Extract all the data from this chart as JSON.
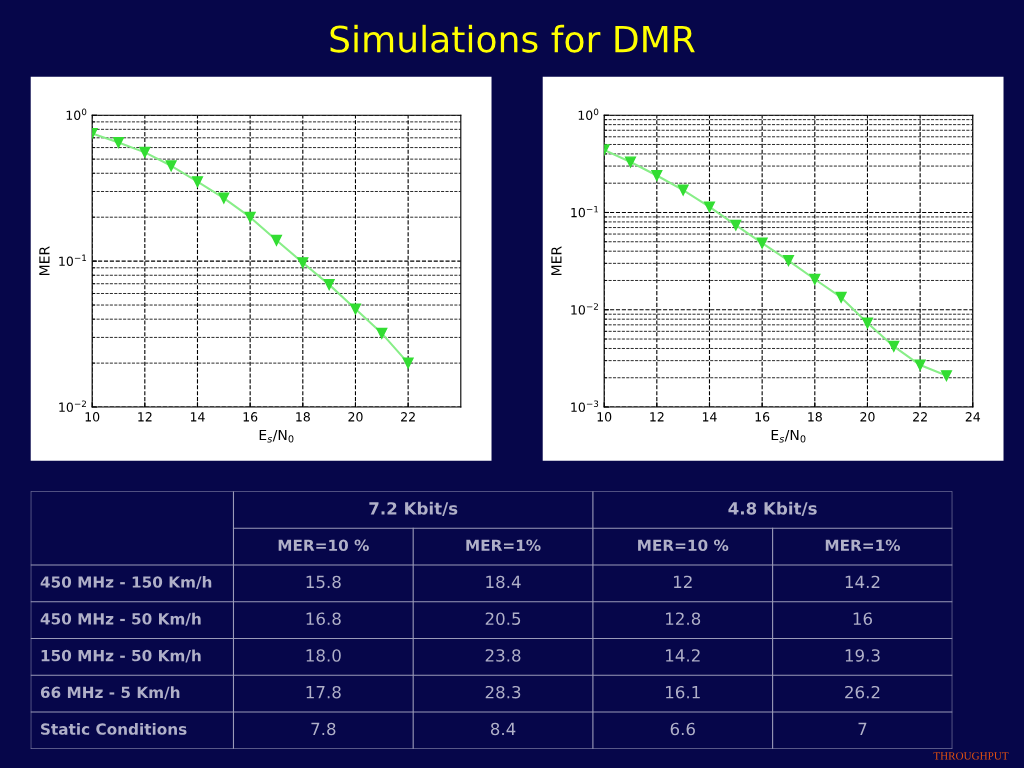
{
  "chart_data": [
    {
      "type": "line",
      "title": "Simulations for DMR",
      "xlabel": "E$_{s}$/N$_{0}$",
      "ylabel": "MER",
      "log": "y",
      "x": [
        10,
        11,
        12,
        13,
        14,
        15,
        16,
        17,
        18,
        19,
        20,
        21,
        22
      ],
      "series": [
        {
          "color": "#33dd33",
          "values": [
            0.75,
            0.65,
            0.556,
            0.45,
            0.35,
            0.27,
            0.2,
            0.139,
            0.0975,
            0.069,
            0.047,
            0.032,
            0.02
          ]
        }
      ],
      "xlim": [
        10,
        24
      ],
      "xticks": [
        10,
        12,
        14,
        16,
        18,
        20,
        22
      ],
      "ylim": [
        0.01,
        1
      ],
      "yticks": [
        {
          "value": 0.01,
          "label": "10$^{−2}$"
        },
        {
          "value": 0.1,
          "label": "10$^{−1}$"
        },
        {
          "value": 1,
          "label": "10$^{0}$"
        }
      ],
      "grid": true,
      "marker": "triangle",
      "line_style": "solid"
    },
    {
      "type": "line",
      "xlabel": "E$_{s}$/N$_{0}$",
      "ylabel": "MER",
      "log": "y",
      "x": [
        10,
        11,
        12,
        13,
        14,
        15,
        16,
        17,
        18,
        19,
        20,
        21,
        22,
        23
      ],
      "series": [
        {
          "color": "#33dd33",
          "values": [
            0.44,
            0.33,
            0.24,
            0.17,
            0.114,
            0.074,
            0.0485,
            0.032,
            0.0206,
            0.0134,
            0.0073,
            0.0042,
            0.0027,
            0.0021
          ]
        }
      ],
      "xlim": [
        10,
        24
      ],
      "xticks": [
        10,
        12,
        14,
        16,
        18,
        20,
        22,
        24
      ],
      "ylim": [
        0.001,
        1
      ],
      "yticks": [
        {
          "value": 0.001,
          "label": "10$^{−3}$"
        },
        {
          "value": 0.01,
          "label": "10$^{−2}$"
        },
        {
          "value": 0.1,
          "label": "10$^{−1}$"
        },
        {
          "value": 1,
          "label": "10$^{0}$"
        }
      ],
      "grid": true,
      "marker": "triangle",
      "line_style": "solid"
    },
    {
      "type": "other",
      "annotations": [
        "7.2 Kbit/s",
        "4.8 Kbit/s",
        "THROUGHPUT"
      ],
      "categories": [
        "MER=10 %",
        "MER=1%",
        "MER=10 %",
        "MER=1%"
      ],
      "y_categories": [
        "450 MHz - 150 Km/h",
        "450 MHz - 50 Km/h",
        "150 MHz - 50 Km/h",
        "66 MHz - 5 Km/h",
        "Static Conditions"
      ],
      "cell_labels": [
        [
          "15.8",
          "18.4",
          "12",
          "14.2"
        ],
        [
          "16.8",
          "20.5",
          "12.8",
          "16"
        ],
        [
          "18.0",
          "23.8",
          "14.2",
          "19.3"
        ],
        [
          "17.8",
          "28.3",
          "16.1",
          "26.2"
        ],
        [
          "7.8",
          "8.4",
          "6.6",
          "7"
        ]
      ]
    }
  ]
}
